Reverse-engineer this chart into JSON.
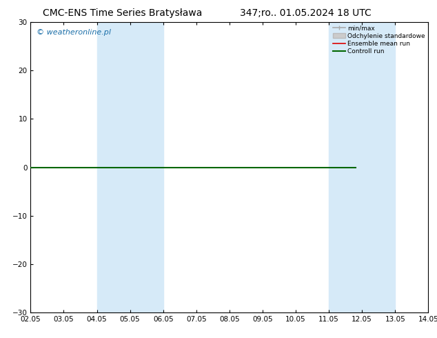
{
  "title_left": "CMC-ENS Time Series Bratysława",
  "title_right": "347;ro.. 01.05.2024 18 UTC",
  "watermark": "© weatheronline.pl",
  "xlim": [
    0,
    12
  ],
  "ylim": [
    -30,
    30
  ],
  "yticks": [
    -30,
    -20,
    -10,
    0,
    10,
    20,
    30
  ],
  "xtick_labels": [
    "02.05",
    "03.05",
    "04.05",
    "05.05",
    "06.05",
    "07.05",
    "08.05",
    "09.05",
    "10.05",
    "11.05",
    "12.05",
    "13.05",
    "14.05"
  ],
  "shaded_regions": [
    [
      2,
      3
    ],
    [
      3,
      4
    ],
    [
      9,
      10
    ],
    [
      10,
      11
    ]
  ],
  "shaded_color": "#d6eaf8",
  "background_color": "#ffffff",
  "plot_bg_color": "#ffffff",
  "border_color": "#000000",
  "zero_line_x_end": 9.8,
  "legend_items": [
    {
      "label": "min/max",
      "color": "#aaaaaa",
      "lw": 1.2,
      "ls": "-"
    },
    {
      "label": "Odchylenie standardowe",
      "color": "#cccccc",
      "lw": 6,
      "ls": "-"
    },
    {
      "label": "Ensemble mean run",
      "color": "#dd0000",
      "lw": 1.2,
      "ls": "-"
    },
    {
      "label": "Controll run",
      "color": "#006600",
      "lw": 1.5,
      "ls": "-"
    }
  ],
  "title_fontsize": 10,
  "tick_fontsize": 7.5,
  "watermark_fontsize": 8,
  "watermark_color": "#1a6ea8"
}
